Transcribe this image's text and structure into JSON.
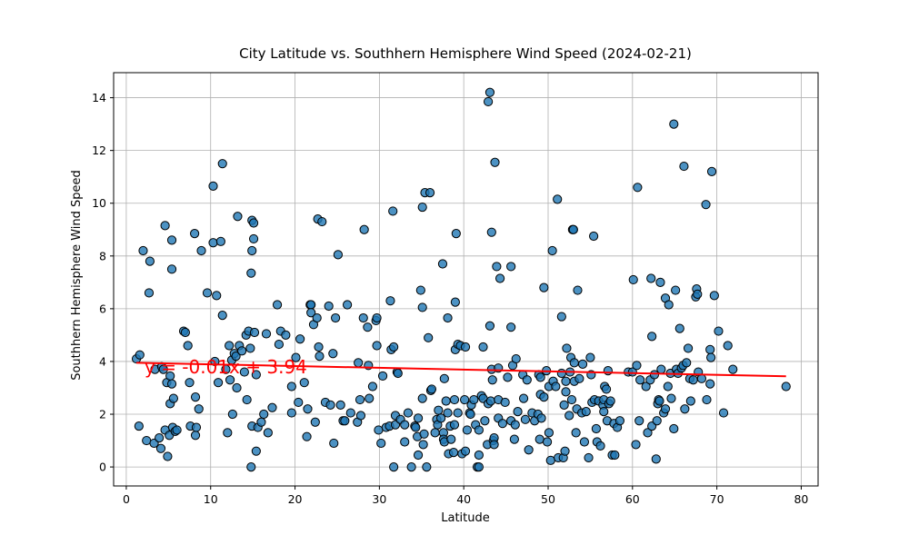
{
  "chart_data": {
    "type": "scatter",
    "title": "City Latitude vs. Southhern Hemisphere Wind Speed (2024-02-21)",
    "xlabel": "Latitude",
    "ylabel": "Southhern Hemisphere Wind Speed",
    "xlim": [
      -1.5,
      82
    ],
    "ylim": [
      -0.72,
      14.95
    ],
    "xticks": [
      0,
      10,
      20,
      30,
      40,
      50,
      60,
      70,
      80
    ],
    "yticks": [
      0,
      2,
      4,
      6,
      8,
      10,
      12,
      14
    ],
    "grid": true,
    "point_color": "#1f77b4",
    "regression": {
      "slope": -0.01,
      "intercept": 3.94,
      "x_range": [
        1.2,
        78.2
      ],
      "y_range": [
        3.95,
        3.44
      ],
      "equation_label": "y = -0.01x + 3.94",
      "color": "#ff0000"
    },
    "points": [
      [
        1.2,
        4.1
      ],
      [
        1.5,
        1.55
      ],
      [
        1.6,
        4.25
      ],
      [
        2,
        8.2
      ],
      [
        2.4,
        1
      ],
      [
        2.8,
        7.8
      ],
      [
        2.7,
        6.6
      ],
      [
        3.3,
        0.9
      ],
      [
        3.4,
        3.7
      ],
      [
        3.9,
        1.1
      ],
      [
        4.1,
        0.7
      ],
      [
        4.2,
        3.8
      ],
      [
        4.4,
        3.7
      ],
      [
        4.6,
        9.15
      ],
      [
        4.6,
        1.4
      ],
      [
        4.8,
        3.2
      ],
      [
        4.9,
        0.4
      ],
      [
        5.1,
        1.2
      ],
      [
        5.2,
        3.45
      ],
      [
        5.2,
        2.4
      ],
      [
        5.4,
        8.6
      ],
      [
        5.4,
        7.5
      ],
      [
        5.4,
        3.15
      ],
      [
        5.5,
        1.5
      ],
      [
        5.6,
        2.6
      ],
      [
        5.8,
        1.35
      ],
      [
        6,
        1.4
      ],
      [
        6.8,
        5.15
      ],
      [
        7,
        5.1
      ],
      [
        7.3,
        4.6
      ],
      [
        7.5,
        3.2
      ],
      [
        7.6,
        1.55
      ],
      [
        8.1,
        8.85
      ],
      [
        8.2,
        1.2
      ],
      [
        8.2,
        2.65
      ],
      [
        8.3,
        1.5
      ],
      [
        8.6,
        2.2
      ],
      [
        8.9,
        8.2
      ],
      [
        9.6,
        6.6
      ],
      [
        10.3,
        10.65
      ],
      [
        10.3,
        8.5
      ],
      [
        10.5,
        4
      ],
      [
        10.7,
        6.5
      ],
      [
        10.9,
        3.2
      ],
      [
        11.2,
        8.55
      ],
      [
        11.4,
        11.5
      ],
      [
        11.4,
        5.75
      ],
      [
        11.8,
        3.7
      ],
      [
        12,
        1.3
      ],
      [
        12.2,
        4.6
      ],
      [
        12.3,
        3.3
      ],
      [
        12.5,
        4.05
      ],
      [
        12.6,
        2
      ],
      [
        12.8,
        4.3
      ],
      [
        13,
        4.2
      ],
      [
        13.1,
        3
      ],
      [
        13.2,
        9.5
      ],
      [
        13.4,
        4.6
      ],
      [
        13.7,
        4.4
      ],
      [
        14,
        3.6
      ],
      [
        14.2,
        5
      ],
      [
        14.3,
        2.55
      ],
      [
        14.5,
        5.15
      ],
      [
        14.7,
        4.5
      ],
      [
        14.8,
        0
      ],
      [
        14.8,
        7.35
      ],
      [
        14.9,
        8.2
      ],
      [
        14.9,
        1.55
      ],
      [
        14.9,
        9.35
      ],
      [
        15.1,
        8.65
      ],
      [
        15.1,
        9.25
      ],
      [
        15.2,
        5.1
      ],
      [
        15.4,
        3.5
      ],
      [
        15.4,
        0.6
      ],
      [
        15.6,
        1.5
      ],
      [
        16,
        1.7
      ],
      [
        16.3,
        2
      ],
      [
        16.6,
        5.05
      ],
      [
        16.8,
        1.3
      ],
      [
        17.3,
        2.25
      ],
      [
        17.9,
        6.15
      ],
      [
        18.1,
        4.65
      ],
      [
        18.3,
        5.15
      ],
      [
        18.9,
        5
      ],
      [
        19.6,
        3.05
      ],
      [
        19.6,
        2.05
      ],
      [
        20.1,
        4.15
      ],
      [
        20.4,
        2.45
      ],
      [
        20.6,
        4.85
      ],
      [
        21.1,
        3.2
      ],
      [
        21.4,
        1.15
      ],
      [
        21.5,
        2.2
      ],
      [
        21.8,
        6.15
      ],
      [
        21.9,
        6.15
      ],
      [
        21.9,
        5.85
      ],
      [
        22.2,
        5.4
      ],
      [
        22.4,
        1.7
      ],
      [
        22.6,
        5.65
      ],
      [
        22.7,
        9.4
      ],
      [
        22.8,
        4.55
      ],
      [
        22.9,
        4.2
      ],
      [
        23.2,
        9.3
      ],
      [
        23.6,
        2.45
      ],
      [
        24,
        6.1
      ],
      [
        24.2,
        2.35
      ],
      [
        24.5,
        4.3
      ],
      [
        24.6,
        0.9
      ],
      [
        24.8,
        5.65
      ],
      [
        25.1,
        8.05
      ],
      [
        25.4,
        2.35
      ],
      [
        25.7,
        1.75
      ],
      [
        25.9,
        1.75
      ],
      [
        26.2,
        6.15
      ],
      [
        26.6,
        2.05
      ],
      [
        27.4,
        1.7
      ],
      [
        27.5,
        3.95
      ],
      [
        27.7,
        2.55
      ],
      [
        27.8,
        1.95
      ],
      [
        28.1,
        5.65
      ],
      [
        28.2,
        9
      ],
      [
        28.6,
        5.3
      ],
      [
        28.7,
        3.85
      ],
      [
        28.8,
        2.6
      ],
      [
        29.2,
        3.05
      ],
      [
        29.6,
        5.55
      ],
      [
        29.7,
        5.65
      ],
      [
        29.7,
        4.6
      ],
      [
        29.9,
        1.4
      ],
      [
        30.2,
        0.9
      ],
      [
        30.4,
        3.45
      ],
      [
        30.8,
        1.5
      ],
      [
        31.2,
        1.55
      ],
      [
        31.3,
        6.3
      ],
      [
        31.4,
        4.45
      ],
      [
        31.6,
        9.7
      ],
      [
        31.7,
        0
      ],
      [
        31.7,
        4.55
      ],
      [
        31.9,
        1.6
      ],
      [
        31.9,
        1.95
      ],
      [
        32.1,
        3.6
      ],
      [
        32.2,
        3.55
      ],
      [
        32.5,
        1.8
      ],
      [
        33,
        1.6
      ],
      [
        33,
        0.95
      ],
      [
        33.4,
        2.05
      ],
      [
        33.8,
        0
      ],
      [
        34.2,
        1.55
      ],
      [
        34.3,
        1.5
      ],
      [
        34.5,
        1.15
      ],
      [
        34.6,
        0.45
      ],
      [
        34.6,
        1.85
      ],
      [
        34.9,
        6.7
      ],
      [
        35.1,
        2.6
      ],
      [
        35.1,
        6.05
      ],
      [
        35.1,
        9.85
      ],
      [
        35.2,
        0.85
      ],
      [
        35.3,
        1.25
      ],
      [
        35.4,
        10.4
      ],
      [
        35.6,
        0
      ],
      [
        35.8,
        4.9
      ],
      [
        36,
        10.4
      ],
      [
        36.1,
        2.9
      ],
      [
        36.2,
        2.95
      ],
      [
        36.6,
        1.3
      ],
      [
        36.8,
        1.8
      ],
      [
        36.9,
        1.6
      ],
      [
        37,
        2.15
      ],
      [
        37.3,
        1.85
      ],
      [
        37.5,
        7.7
      ],
      [
        37.6,
        1.3
      ],
      [
        37.6,
        1.05
      ],
      [
        37.7,
        0.95
      ],
      [
        37.7,
        3.35
      ],
      [
        37.9,
        2.5
      ],
      [
        38.1,
        5.65
      ],
      [
        38.1,
        2.05
      ],
      [
        38.2,
        0.5
      ],
      [
        38.4,
        1.55
      ],
      [
        38.5,
        1.05
      ],
      [
        38.8,
        0.55
      ],
      [
        38.9,
        1.6
      ],
      [
        38.9,
        2.55
      ],
      [
        39,
        6.25
      ],
      [
        39,
        4.45
      ],
      [
        39.1,
        8.85
      ],
      [
        39.3,
        4.65
      ],
      [
        39.3,
        2.05
      ],
      [
        39.6,
        4.6
      ],
      [
        39.8,
        0.5
      ],
      [
        40.1,
        2.55
      ],
      [
        40.2,
        4.55
      ],
      [
        40.2,
        0.6
      ],
      [
        40.4,
        1.4
      ],
      [
        40.7,
        2.05
      ],
      [
        40.8,
        2
      ],
      [
        40.9,
        2.35
      ],
      [
        41.2,
        2.55
      ],
      [
        41.4,
        1.6
      ],
      [
        41.6,
        0
      ],
      [
        41.8,
        1.4
      ],
      [
        41.8,
        0
      ],
      [
        41.8,
        0.45
      ],
      [
        42.1,
        2.7
      ],
      [
        42.3,
        2.6
      ],
      [
        42.3,
        4.55
      ],
      [
        42.5,
        1.75
      ],
      [
        42.8,
        0.85
      ],
      [
        42.9,
        13.85
      ],
      [
        42.9,
        2.4
      ],
      [
        43.1,
        5.35
      ],
      [
        43.1,
        14.2
      ],
      [
        43.2,
        2.5
      ],
      [
        43.3,
        8.9
      ],
      [
        43.3,
        3.7
      ],
      [
        43.4,
        3.3
      ],
      [
        43.5,
        1
      ],
      [
        43.6,
        1.1
      ],
      [
        43.6,
        0.85
      ],
      [
        43.7,
        11.55
      ],
      [
        43.9,
        7.6
      ],
      [
        44.1,
        3.75
      ],
      [
        44.1,
        1.85
      ],
      [
        44.1,
        2.55
      ],
      [
        44.3,
        7.15
      ],
      [
        44.6,
        1.65
      ],
      [
        44.9,
        2.45
      ],
      [
        45.2,
        3.4
      ],
      [
        45.6,
        7.6
      ],
      [
        45.6,
        5.3
      ],
      [
        45.6,
        1.75
      ],
      [
        45.8,
        3.85
      ],
      [
        46,
        1.05
      ],
      [
        46.1,
        1.6
      ],
      [
        46.2,
        4.1
      ],
      [
        46.4,
        2.1
      ],
      [
        47,
        3.5
      ],
      [
        47.1,
        2.6
      ],
      [
        47.3,
        1.8
      ],
      [
        47.5,
        3.3
      ],
      [
        47.7,
        0.65
      ],
      [
        48.1,
        2.05
      ],
      [
        48.4,
        1.75
      ],
      [
        48.8,
        2
      ],
      [
        48.9,
        3.5
      ],
      [
        49,
        1.05
      ],
      [
        49.1,
        2.75
      ],
      [
        49.1,
        3.4
      ],
      [
        49.2,
        1.85
      ],
      [
        49.5,
        6.8
      ],
      [
        49.5,
        2.65
      ],
      [
        49.8,
        3.65
      ],
      [
        49.9,
        0.95
      ],
      [
        50.1,
        1.3
      ],
      [
        50.1,
        3.05
      ],
      [
        50.3,
        0.25
      ],
      [
        50.5,
        8.2
      ],
      [
        50.6,
        3.25
      ],
      [
        50.9,
        3.05
      ],
      [
        51.1,
        10.15
      ],
      [
        51.2,
        0.35
      ],
      [
        51.6,
        3.55
      ],
      [
        51.6,
        5.7
      ],
      [
        51.8,
        0.35
      ],
      [
        51.9,
        2.35
      ],
      [
        52,
        0.6
      ],
      [
        52.1,
        3.25
      ],
      [
        52.1,
        2.85
      ],
      [
        52.2,
        4.5
      ],
      [
        52.5,
        1.95
      ],
      [
        52.6,
        3.6
      ],
      [
        52.7,
        4.15
      ],
      [
        52.8,
        2.55
      ],
      [
        52.9,
        9
      ],
      [
        53,
        9
      ],
      [
        53.1,
        3.95
      ],
      [
        53.1,
        3.25
      ],
      [
        53.3,
        1.3
      ],
      [
        53.4,
        2.2
      ],
      [
        53.5,
        6.7
      ],
      [
        53.7,
        3.35
      ],
      [
        54,
        2.05
      ],
      [
        54.1,
        3.9
      ],
      [
        54.3,
        0.95
      ],
      [
        54.5,
        2.1
      ],
      [
        54.8,
        0.35
      ],
      [
        55,
        4.15
      ],
      [
        55.1,
        3.5
      ],
      [
        55.2,
        2.45
      ],
      [
        55.4,
        8.75
      ],
      [
        55.5,
        2.55
      ],
      [
        55.7,
        1.45
      ],
      [
        55.8,
        0.95
      ],
      [
        56,
        2.5
      ],
      [
        56.2,
        0.8
      ],
      [
        56.5,
        2.35
      ],
      [
        56.6,
        2.55
      ],
      [
        56.6,
        2.1
      ],
      [
        56.7,
        3.05
      ],
      [
        56.9,
        2.95
      ],
      [
        57,
        1.75
      ],
      [
        57.1,
        3.65
      ],
      [
        57.2,
        2.4
      ],
      [
        57.4,
        2.5
      ],
      [
        57.6,
        0.45
      ],
      [
        57.8,
        1.65
      ],
      [
        57.9,
        0.45
      ],
      [
        58.2,
        1.5
      ],
      [
        58.5,
        1.75
      ],
      [
        59.5,
        3.6
      ],
      [
        60,
        3.6
      ],
      [
        60.1,
        7.1
      ],
      [
        60.4,
        0.85
      ],
      [
        60.5,
        3.85
      ],
      [
        60.6,
        10.6
      ],
      [
        60.8,
        1.75
      ],
      [
        60.9,
        3.3
      ],
      [
        61.6,
        3.05
      ],
      [
        61.8,
        1.3
      ],
      [
        62.1,
        3.3
      ],
      [
        62.2,
        7.15
      ],
      [
        62.3,
        1.55
      ],
      [
        62.3,
        4.95
      ],
      [
        62.6,
        3.5
      ],
      [
        62.8,
        0.3
      ],
      [
        62.9,
        1.75
      ],
      [
        63,
        2.4
      ],
      [
        63.1,
        2.55
      ],
      [
        63.2,
        2.5
      ],
      [
        63.3,
        7
      ],
      [
        63.4,
        3.7
      ],
      [
        63.7,
        2.05
      ],
      [
        63.9,
        6.4
      ],
      [
        63.9,
        2.2
      ],
      [
        64.2,
        3.05
      ],
      [
        64.3,
        6.15
      ],
      [
        64.5,
        3.55
      ],
      [
        64.6,
        2.6
      ],
      [
        64.9,
        13
      ],
      [
        64.9,
        1.45
      ],
      [
        65.1,
        6.7
      ],
      [
        65.2,
        3.7
      ],
      [
        65.4,
        3.55
      ],
      [
        65.6,
        5.25
      ],
      [
        65.8,
        3.75
      ],
      [
        66,
        3.85
      ],
      [
        66.1,
        11.4
      ],
      [
        66.2,
        2.2
      ],
      [
        66.4,
        3.95
      ],
      [
        66.6,
        4.5
      ],
      [
        66.8,
        3.35
      ],
      [
        66.9,
        2.5
      ],
      [
        67.2,
        3.3
      ],
      [
        67.5,
        6.45
      ],
      [
        67.6,
        6.75
      ],
      [
        67.7,
        6.55
      ],
      [
        67.8,
        3.6
      ],
      [
        68.2,
        3.35
      ],
      [
        68.7,
        9.95
      ],
      [
        68.8,
        2.55
      ],
      [
        69.2,
        3.15
      ],
      [
        69.2,
        4.45
      ],
      [
        69.3,
        4.15
      ],
      [
        69.4,
        11.2
      ],
      [
        69.7,
        6.5
      ],
      [
        70.2,
        5.15
      ],
      [
        70.8,
        2.05
      ],
      [
        71.3,
        4.6
      ],
      [
        71.9,
        3.7
      ],
      [
        78.2,
        3.05
      ]
    ]
  }
}
